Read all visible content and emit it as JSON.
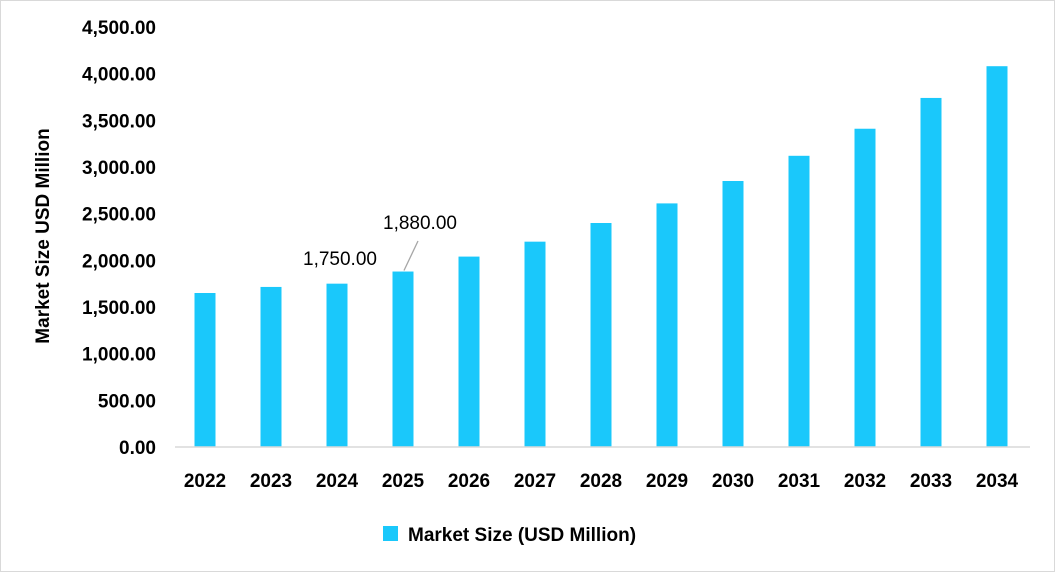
{
  "chart_data": {
    "type": "bar",
    "title": "",
    "xlabel": "",
    "ylabel": "Market Size USD Million",
    "categories": [
      "2022",
      "2023",
      "2024",
      "2025",
      "2026",
      "2027",
      "2028",
      "2029",
      "2030",
      "2031",
      "2032",
      "2033",
      "2034"
    ],
    "series": [
      {
        "name": "Market Size (USD Million)",
        "values": [
          1650,
          1715,
          1750,
          1880,
          2040,
          2200,
          2400,
          2610,
          2850,
          3120,
          3410,
          3740,
          4080
        ],
        "color": "#1ac8fb"
      }
    ],
    "data_labels": [
      {
        "category": "2024",
        "text": "1,750.00"
      },
      {
        "category": "2025",
        "text": "1,880.00"
      }
    ],
    "ylim": [
      0,
      4500
    ],
    "yticks": [
      "0.00",
      "500.00",
      "1,000.00",
      "1,500.00",
      "2,000.00",
      "2,500.00",
      "3,000.00",
      "3,500.00",
      "4,000.00",
      "4,500.00"
    ],
    "grid": false,
    "legend_position": "bottom"
  }
}
